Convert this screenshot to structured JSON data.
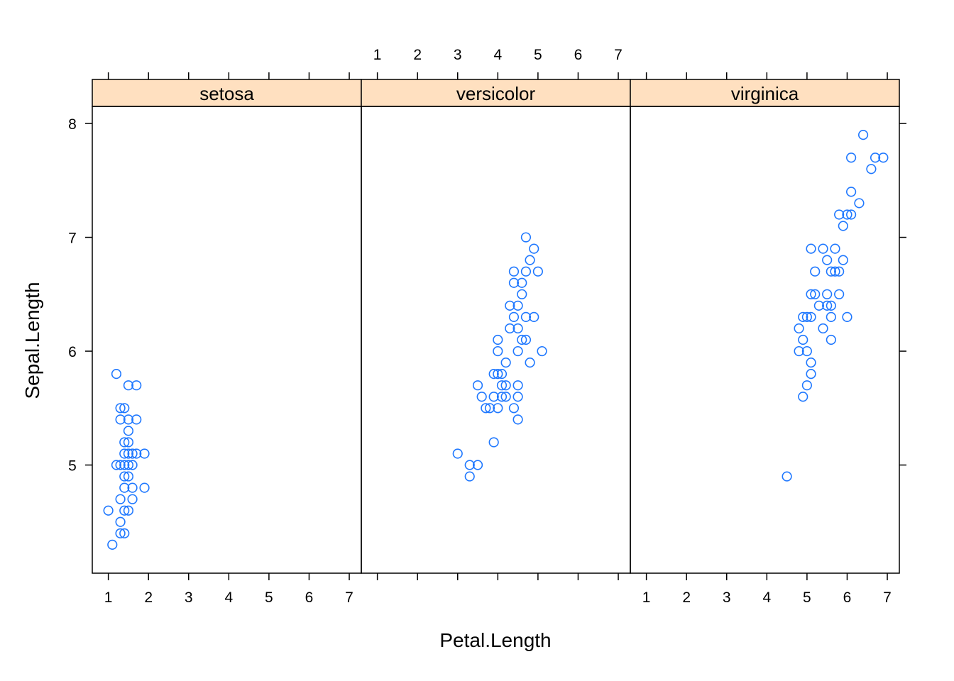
{
  "chart_data": {
    "type": "scatter",
    "layout": "lattice-3-panels",
    "xlabel": "Petal.Length",
    "ylabel": "Sepal.Length",
    "xlim": [
      0.6,
      7.3
    ],
    "ylim": [
      4.05,
      8.15
    ],
    "x_ticks": [
      1,
      2,
      3,
      4,
      5,
      6,
      7
    ],
    "y_ticks": [
      5,
      6,
      7,
      8
    ],
    "strip_color": "#ffe0c0",
    "point_color": "#1f78ff",
    "grid": false,
    "panels": [
      {
        "name": "setosa",
        "points": [
          [
            1.0,
            4.6
          ],
          [
            1.1,
            4.3
          ],
          [
            1.2,
            5.8
          ],
          [
            1.2,
            5.0
          ],
          [
            1.3,
            5.5
          ],
          [
            1.3,
            5.4
          ],
          [
            1.3,
            5.0
          ],
          [
            1.3,
            4.7
          ],
          [
            1.3,
            4.5
          ],
          [
            1.3,
            4.4
          ],
          [
            1.4,
            5.5
          ],
          [
            1.4,
            5.2
          ],
          [
            1.4,
            5.1
          ],
          [
            1.4,
            5.0
          ],
          [
            1.4,
            4.9
          ],
          [
            1.4,
            4.8
          ],
          [
            1.4,
            4.6
          ],
          [
            1.4,
            4.4
          ],
          [
            1.5,
            5.7
          ],
          [
            1.5,
            5.4
          ],
          [
            1.5,
            5.3
          ],
          [
            1.5,
            5.2
          ],
          [
            1.5,
            5.1
          ],
          [
            1.5,
            5.0
          ],
          [
            1.5,
            4.9
          ],
          [
            1.5,
            4.6
          ],
          [
            1.6,
            5.1
          ],
          [
            1.6,
            5.0
          ],
          [
            1.6,
            4.8
          ],
          [
            1.6,
            4.7
          ],
          [
            1.7,
            5.7
          ],
          [
            1.7,
            5.4
          ],
          [
            1.7,
            5.1
          ],
          [
            1.9,
            5.1
          ],
          [
            1.9,
            4.8
          ]
        ]
      },
      {
        "name": "versicolor",
        "points": [
          [
            3.0,
            5.1
          ],
          [
            3.3,
            5.0
          ],
          [
            3.3,
            4.9
          ],
          [
            3.5,
            5.7
          ],
          [
            3.5,
            5.0
          ],
          [
            3.6,
            5.6
          ],
          [
            3.7,
            5.5
          ],
          [
            3.8,
            5.5
          ],
          [
            3.9,
            5.8
          ],
          [
            3.9,
            5.6
          ],
          [
            3.9,
            5.2
          ],
          [
            4.0,
            6.1
          ],
          [
            4.0,
            6.0
          ],
          [
            4.0,
            5.8
          ],
          [
            4.0,
            5.5
          ],
          [
            4.1,
            5.8
          ],
          [
            4.1,
            5.7
          ],
          [
            4.1,
            5.6
          ],
          [
            4.2,
            5.9
          ],
          [
            4.2,
            5.7
          ],
          [
            4.2,
            5.6
          ],
          [
            4.3,
            6.4
          ],
          [
            4.3,
            6.2
          ],
          [
            4.4,
            6.7
          ],
          [
            4.4,
            6.6
          ],
          [
            4.4,
            6.3
          ],
          [
            4.4,
            5.5
          ],
          [
            4.5,
            6.4
          ],
          [
            4.5,
            6.2
          ],
          [
            4.5,
            6.0
          ],
          [
            4.5,
            5.7
          ],
          [
            4.5,
            5.6
          ],
          [
            4.5,
            5.4
          ],
          [
            4.6,
            6.6
          ],
          [
            4.6,
            6.5
          ],
          [
            4.6,
            6.1
          ],
          [
            4.7,
            7.0
          ],
          [
            4.7,
            6.7
          ],
          [
            4.7,
            6.3
          ],
          [
            4.7,
            6.1
          ],
          [
            4.8,
            6.8
          ],
          [
            4.8,
            5.9
          ],
          [
            4.9,
            6.9
          ],
          [
            4.9,
            6.3
          ],
          [
            5.0,
            6.7
          ],
          [
            5.1,
            6.0
          ]
        ]
      },
      {
        "name": "virginica",
        "points": [
          [
            4.5,
            4.9
          ],
          [
            4.8,
            6.2
          ],
          [
            4.8,
            6.0
          ],
          [
            4.9,
            6.3
          ],
          [
            4.9,
            6.1
          ],
          [
            4.9,
            5.6
          ],
          [
            5.0,
            6.3
          ],
          [
            5.0,
            6.0
          ],
          [
            5.0,
            5.7
          ],
          [
            5.1,
            6.9
          ],
          [
            5.1,
            6.5
          ],
          [
            5.1,
            6.3
          ],
          [
            5.1,
            5.9
          ],
          [
            5.1,
            5.8
          ],
          [
            5.2,
            6.7
          ],
          [
            5.2,
            6.5
          ],
          [
            5.3,
            6.4
          ],
          [
            5.4,
            6.9
          ],
          [
            5.4,
            6.2
          ],
          [
            5.5,
            6.8
          ],
          [
            5.5,
            6.5
          ],
          [
            5.5,
            6.4
          ],
          [
            5.6,
            6.7
          ],
          [
            5.6,
            6.4
          ],
          [
            5.6,
            6.3
          ],
          [
            5.6,
            6.1
          ],
          [
            5.7,
            6.9
          ],
          [
            5.7,
            6.7
          ],
          [
            5.8,
            6.7
          ],
          [
            5.8,
            6.5
          ],
          [
            5.8,
            7.2
          ],
          [
            5.9,
            7.1
          ],
          [
            5.9,
            6.8
          ],
          [
            6.0,
            7.2
          ],
          [
            6.0,
            6.3
          ],
          [
            6.1,
            7.7
          ],
          [
            6.1,
            7.4
          ],
          [
            6.1,
            7.2
          ],
          [
            6.3,
            7.3
          ],
          [
            6.4,
            7.9
          ],
          [
            6.6,
            7.6
          ],
          [
            6.7,
            7.7
          ],
          [
            6.9,
            7.7
          ]
        ]
      }
    ]
  }
}
